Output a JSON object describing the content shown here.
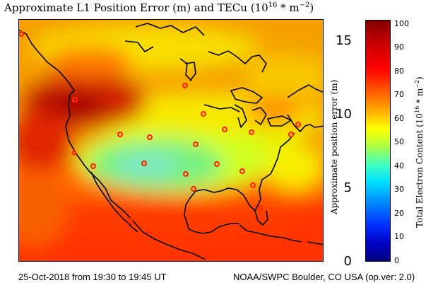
{
  "title": {
    "text": "Approximate L1 Position Error (m) and TECu (10",
    "exponent": "16",
    "suffix": " * m",
    "suffix_exp": "−2",
    "close": ")"
  },
  "position_axis": {
    "label": "Approximate position error (m)",
    "ticks": [
      "15",
      "10",
      "5",
      "0"
    ],
    "range": [
      0,
      16.3
    ]
  },
  "colorbar": {
    "label": "Total Electron Content (10",
    "label_exp": "16",
    "label_suffix": " * m",
    "label_suffix_exp": "−2",
    "label_close": ")",
    "ticks": [
      "100",
      "90",
      "80",
      "70",
      "60",
      "50",
      "40",
      "30",
      "20",
      "10",
      "0"
    ],
    "range": [
      0,
      102
    ]
  },
  "footer": {
    "left": "25-Oct-2018 from 19:30 to 19:45 UT",
    "right": "NOAA/SWPC Boulder, CO USA (op.ver: 2.0)"
  },
  "colors": {
    "background": "#ffffff",
    "coast": "#000000",
    "station": "#e02000"
  }
}
